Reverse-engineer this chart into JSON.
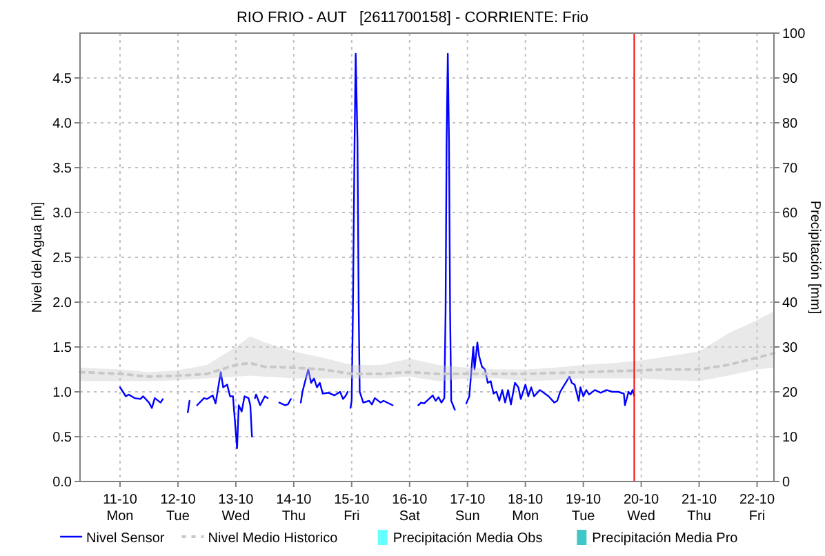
{
  "chart_data": {
    "type": "line",
    "title": "RIO FRIO - AUT   [2611700158] - CORRIENTE: Frio",
    "ylabel": "Nivel del Agua [m]",
    "y2label": "Precipitación [mm]",
    "xlim": [
      "--10-10T07:25",
      "--10-22T07:00"
    ],
    "xticks": [
      {
        "value": "--10-11",
        "label": "11-10\nMon"
      },
      {
        "value": "--10-12",
        "label": "12-10\nTue"
      },
      {
        "value": "--10-13",
        "label": "13-10\nWed"
      },
      {
        "value": "--10-14",
        "label": "14-10\nThu"
      },
      {
        "value": "--10-15",
        "label": "15-10\nFri"
      },
      {
        "value": "--10-16",
        "label": "16-10\nSat"
      },
      {
        "value": "--10-17",
        "label": "17-10\nSun"
      },
      {
        "value": "--10-18",
        "label": "18-10\nMon"
      },
      {
        "value": "--10-19",
        "label": "19-10\nTue"
      },
      {
        "value": "--10-20",
        "label": "20-10\nWed"
      },
      {
        "value": "--10-21",
        "label": "21-10\nThu"
      },
      {
        "value": "--10-22",
        "label": "22-10\nFri"
      }
    ],
    "ylim": [
      0,
      5
    ],
    "yticks": [
      {
        "value": 0,
        "label": "0.0"
      },
      {
        "value": 0.5,
        "label": "0.5"
      },
      {
        "value": 1,
        "label": "1.0"
      },
      {
        "value": 1.5,
        "label": "1.5"
      },
      {
        "value": 2,
        "label": "2.0"
      },
      {
        "value": 2.5,
        "label": "2.5"
      },
      {
        "value": 3,
        "label": "3.0"
      },
      {
        "value": 3.5,
        "label": "3.5"
      },
      {
        "value": 4,
        "label": "4.0"
      },
      {
        "value": 4.5,
        "label": "4.5"
      }
    ],
    "y2lim": [
      0,
      100
    ],
    "y2ticks": [
      0,
      10,
      20,
      30,
      40,
      50,
      60,
      70,
      80,
      90,
      100
    ],
    "grid": true,
    "legend": "bottom",
    "ref_lines": [
      {
        "axis": "x",
        "value": "--10-19T21:05",
        "color": "#ff0000"
      }
    ],
    "series": [
      {
        "name": "Nivel Sensor",
        "color": "#0000ff",
        "line_style": "solid",
        "x": [
          "--10-11T00:00",
          "--10-11T02:24",
          "--10-11T03:36",
          "--10-11T06:00",
          "--10-11T08:24",
          "--10-11T09:36",
          "--10-11T12:00",
          "--10-11T13:12",
          "--10-11T14:24",
          "--10-11T16:48",
          "--10-11T17:45",
          "--10-11T21:36",
          "--10-12T04:05",
          "--10-12T04:48",
          "--10-12T06:00",
          "--10-12T07:55",
          "--10-12T10:48",
          "--10-12T12:00",
          "--10-12T14:24",
          "--10-12T15:36",
          "--10-12T17:45",
          "--10-12T18:45",
          "--10-12T20:24",
          "--10-12T21:36",
          "--10-12T22:48",
          "--10-13T00:30",
          "--10-13T01:12",
          "--10-13T02:24",
          "--10-13T03:36",
          "--10-13T05:15",
          "--10-13T06:00",
          "--10-13T06:40",
          "--10-13T07:12",
          "--10-13T07:55",
          "--10-13T08:24",
          "--10-13T10:05",
          "--10-13T12:00",
          "--10-13T13:12",
          "--10-13T15:36",
          "--10-13T18:00",
          "--10-13T20:24",
          "--10-13T21:36",
          "--10-13T22:48",
          "--10-14T01:12",
          "--10-14T02:55",
          "--10-14T03:36",
          "--10-14T06:00",
          "--10-14T07:12",
          "--10-14T08:24",
          "--10-14T09:36",
          "--10-14T10:48",
          "--10-14T12:00",
          "--10-14T14:24",
          "--10-14T16:48",
          "--10-14T19:12",
          "--10-14T20:24",
          "--10-14T21:36",
          "--10-14T22:20",
          "--10-14T23:00",
          "--10-14T23:30",
          "--10-15T00:00",
          "--10-15T00:30",
          "--10-15T01:12",
          "--10-15T01:40",
          "--10-15T02:24",
          "--10-15T02:55",
          "--10-15T03:20",
          "--10-15T04:48",
          "--10-15T07:12",
          "--10-15T08:24",
          "--10-15T09:36",
          "--10-15T12:00",
          "--10-15T13:12",
          "--10-15T17:00",
          "--10-15T21:36",
          "--10-16T03:36",
          "--10-16T04:48",
          "--10-16T06:00",
          "--10-16T08:24",
          "--10-16T09:36",
          "--10-16T10:48",
          "--10-16T12:00",
          "--10-16T13:12",
          "--10-16T14:24",
          "--10-16T14:55",
          "--10-16T15:20",
          "--10-16T15:50",
          "--10-16T16:20",
          "--10-16T16:48",
          "--10-16T17:15",
          "--10-16T18:45",
          "--10-16T21:36",
          "--10-16T23:30",
          "--10-17T00:45",
          "--10-17T02:24",
          "--10-17T02:55",
          "--10-17T04:05",
          "--10-17T04:48",
          "--10-17T06:00",
          "--10-17T07:12",
          "--10-17T08:24",
          "--10-17T09:36",
          "--10-17T10:48",
          "--10-17T12:00",
          "--10-17T13:12",
          "--10-17T14:24",
          "--10-17T15:36",
          "--10-17T16:48",
          "--10-17T18:00",
          "--10-17T19:40",
          "--10-17T21:05",
          "--10-17T22:05",
          "--10-18T00:00",
          "--10-18T01:12",
          "--10-18T02:24",
          "--10-18T03:36",
          "--10-18T06:00",
          "--10-18T09:36",
          "--10-18T12:00",
          "--10-18T13:12",
          "--10-18T14:24",
          "--10-18T18:15",
          "--10-18T19:12",
          "--10-18T20:24",
          "--10-18T22:05",
          "--10-18T22:48",
          "--10-19T00:00",
          "--10-19T01:12",
          "--10-19T02:24",
          "--10-19T04:48",
          "--10-19T07:12",
          "--10-19T09:36",
          "--10-19T12:00",
          "--10-19T14:24",
          "--10-19T16:48",
          "--10-19T17:15",
          "--10-19T18:45",
          "--10-19T19:40",
          "--10-19T20:24",
          "--10-19T21:05"
        ],
        "values": [
          1.05,
          0.95,
          0.97,
          0.93,
          0.92,
          0.95,
          0.88,
          0.82,
          0.93,
          0.88,
          0.92,
          null,
          0.77,
          0.9,
          null,
          0.85,
          0.93,
          0.92,
          0.96,
          0.87,
          1.22,
          1.05,
          1.08,
          0.95,
          0.95,
          0.37,
          0.85,
          0.78,
          0.95,
          0.93,
          0.85,
          0.5,
          null,
          0.93,
          0.97,
          0.85,
          0.95,
          0.93,
          null,
          0.88,
          0.85,
          0.86,
          0.92,
          null,
          0.88,
          1.0,
          1.25,
          1.1,
          1.15,
          1.05,
          1.1,
          0.98,
          0.99,
          0.96,
          1.0,
          0.92,
          0.96,
          1.0,
          null,
          0.82,
          0.9,
          1.88,
          3.8,
          4.77,
          3.8,
          1.9,
          1.0,
          0.88,
          0.9,
          0.86,
          0.93,
          0.88,
          0.9,
          0.85,
          null,
          0.85,
          0.88,
          0.87,
          0.93,
          0.96,
          0.9,
          0.94,
          0.88,
          0.93,
          1.9,
          3.8,
          4.77,
          3.8,
          1.85,
          0.9,
          0.8,
          null,
          0.87,
          0.95,
          1.5,
          1.25,
          1.55,
          1.4,
          1.28,
          1.25,
          1.1,
          1.12,
          0.98,
          1.0,
          0.9,
          1.02,
          0.88,
          1.02,
          0.86,
          1.1,
          1.05,
          0.92,
          1.08,
          0.95,
          1.05,
          0.95,
          1.02,
          0.95,
          0.88,
          0.9,
          1.0,
          1.17,
          1.1,
          1.08,
          0.9,
          1.05,
          0.95,
          1.02,
          0.97,
          1.02,
          0.99,
          1.02,
          1.0,
          1.0,
          0.98,
          0.85,
          1.0,
          0.97,
          1.02,
          0.96
        ]
      },
      {
        "name": "Nivel Medio Historico",
        "color": "#c8c8c8",
        "line_style": "dashed",
        "x": [
          "--10-10T07:25",
          "--10-11T00:00",
          "--10-11T12:00",
          "--10-12T00:00",
          "--10-12T12:00",
          "--10-13T00:00",
          "--10-13T06:00",
          "--10-13T12:00",
          "--10-14T00:00",
          "--10-14T12:00",
          "--10-15T00:00",
          "--10-15T12:00",
          "--10-16T00:00",
          "--10-16T12:00",
          "--10-17T00:00",
          "--10-17T12:00",
          "--10-18T00:00",
          "--10-18T12:00",
          "--10-19T00:00",
          "--10-19T12:00",
          "--10-20T00:00",
          "--10-20T12:00",
          "--10-21T00:00",
          "--10-21T12:00",
          "--10-22T00:00",
          "--10-22T07:00"
        ],
        "values": [
          1.22,
          1.2,
          1.17,
          1.18,
          1.2,
          1.3,
          1.32,
          1.28,
          1.27,
          1.25,
          1.2,
          1.2,
          1.22,
          1.2,
          1.2,
          1.2,
          1.2,
          1.21,
          1.22,
          1.23,
          1.24,
          1.25,
          1.25,
          1.3,
          1.38,
          1.43
        ],
        "lower": [
          1.12,
          1.12,
          1.12,
          1.13,
          1.15,
          1.17,
          1.18,
          1.17,
          1.15,
          1.15,
          1.15,
          1.15,
          1.17,
          1.12,
          1.15,
          1.15,
          1.12,
          1.13,
          1.15,
          1.15,
          1.15,
          1.13,
          1.12,
          1.18,
          1.25,
          1.27
        ],
        "upper": [
          1.27,
          1.25,
          1.22,
          1.24,
          1.3,
          1.5,
          1.62,
          1.55,
          1.45,
          1.38,
          1.3,
          1.3,
          1.37,
          1.3,
          1.27,
          1.25,
          1.25,
          1.27,
          1.3,
          1.32,
          1.35,
          1.4,
          1.45,
          1.65,
          1.8,
          1.9
        ]
      },
      {
        "name": "Precipitación Media Obs",
        "type": "bar",
        "color": "#66ffff"
      },
      {
        "name": "Precipitación Media Pro",
        "type": "bar",
        "color": "#40c8c8"
      }
    ]
  }
}
